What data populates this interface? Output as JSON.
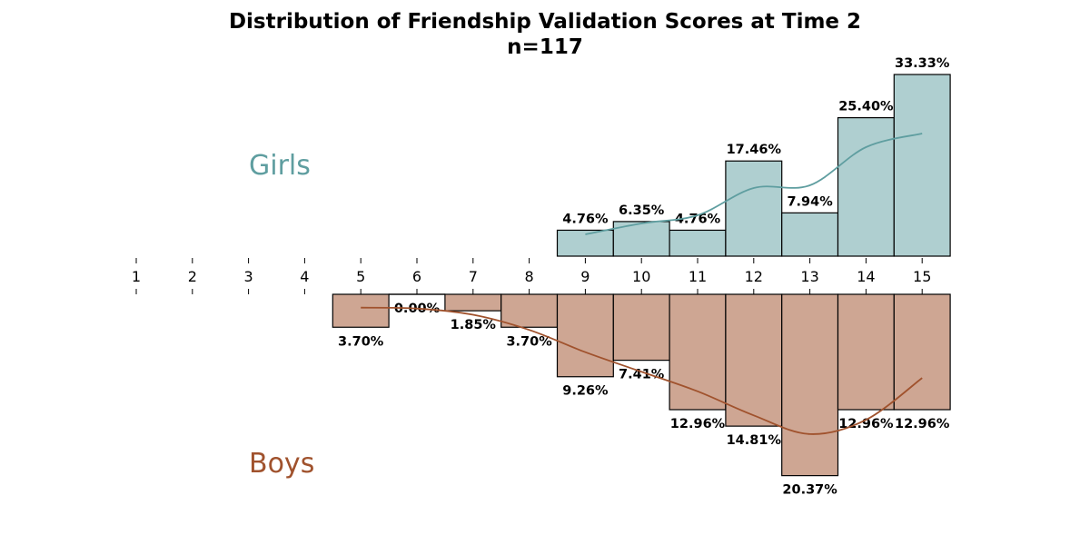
{
  "chart_data": {
    "type": "bar",
    "title": "Distribution of Friendship Validation Scores at Time 2",
    "subtitle": "n=117",
    "x_ticks": [
      1,
      2,
      3,
      4,
      5,
      6,
      7,
      8,
      9,
      10,
      11,
      12,
      13,
      14,
      15
    ],
    "x_range": [
      1,
      15
    ],
    "grid": false,
    "series": [
      {
        "name": "Girls",
        "direction": "up",
        "color_fill": "#afcfd0",
        "color_line": "#5f9ea0",
        "x": [
          9,
          10,
          11,
          12,
          13,
          14,
          15
        ],
        "values": [
          4.76,
          6.35,
          4.76,
          17.46,
          7.94,
          25.4,
          33.33
        ],
        "labels": [
          "4.76%",
          "6.35%",
          "4.76%",
          "17.46%",
          "7.94%",
          "25.40%",
          "33.33%"
        ],
        "kde": [
          [
            9,
            4.0
          ],
          [
            10,
            6.0
          ],
          [
            11,
            7.5
          ],
          [
            12,
            12.5
          ],
          [
            13,
            13.0
          ],
          [
            14,
            20.0
          ],
          [
            15,
            22.5
          ]
        ]
      },
      {
        "name": "Boys",
        "direction": "down",
        "color_fill": "#cea693",
        "color_line": "#a0522d",
        "x": [
          5,
          6,
          7,
          8,
          9,
          10,
          11,
          12,
          13,
          14,
          15
        ],
        "values": [
          3.7,
          0.0,
          1.85,
          3.7,
          9.26,
          7.41,
          12.96,
          14.81,
          20.37,
          12.96,
          12.96
        ],
        "labels": [
          "3.70%",
          "0.00%",
          "1.85%",
          "3.70%",
          "9.26%",
          "7.41%",
          "12.96%",
          "14.81%",
          "20.37%",
          "12.96%",
          "12.96%"
        ],
        "kde": [
          [
            5,
            1.5
          ],
          [
            6,
            1.6
          ],
          [
            7,
            2.3
          ],
          [
            8,
            4.0
          ],
          [
            9,
            6.5
          ],
          [
            10,
            8.7
          ],
          [
            11,
            10.9
          ],
          [
            12,
            13.6
          ],
          [
            13,
            15.7
          ],
          [
            14,
            14.1
          ],
          [
            15,
            9.4
          ]
        ]
      }
    ]
  }
}
